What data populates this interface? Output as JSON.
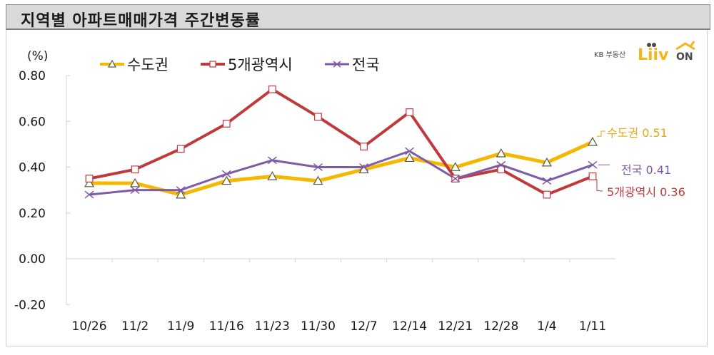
{
  "header": {
    "title": "지역별 아파트매매가격 주간변동률"
  },
  "logo": {
    "prefix": "KB 부동산",
    "brand": "Liiv",
    "suffix": "ON"
  },
  "chart_data": {
    "type": "line",
    "title": "지역별 아파트매매가격 주간변동률",
    "ylabel": "(%)",
    "xlabel": "",
    "ylim": [
      -0.2,
      0.8
    ],
    "yticks": [
      "0.80",
      "0.60",
      "0.40",
      "0.20",
      "0.00",
      "-0.20"
    ],
    "ytick_values": [
      0.8,
      0.6,
      0.4,
      0.2,
      0.0,
      -0.2
    ],
    "negative_tick_color": "#e03030",
    "grid": false,
    "legend_position": "top",
    "categories": [
      "10/26",
      "11/2",
      "11/9",
      "11/16",
      "11/23",
      "11/30",
      "12/7",
      "12/14",
      "12/21",
      "12/28",
      "1/4",
      "1/11"
    ],
    "series": [
      {
        "name": "수도권",
        "color": "#f5b800",
        "marker": "triangle",
        "values": [
          0.33,
          0.33,
          0.28,
          0.34,
          0.36,
          0.34,
          0.39,
          0.44,
          0.4,
          0.46,
          0.42,
          0.51
        ]
      },
      {
        "name": "5개광역시",
        "color": "#c0393b",
        "marker": "square",
        "values": [
          0.35,
          0.39,
          0.48,
          0.59,
          0.74,
          0.62,
          0.49,
          0.64,
          0.35,
          0.39,
          0.28,
          0.36
        ]
      },
      {
        "name": "전국",
        "color": "#7f5aa6",
        "marker": "x",
        "values": [
          0.28,
          0.3,
          0.3,
          0.37,
          0.43,
          0.4,
          0.4,
          0.47,
          0.35,
          0.41,
          0.34,
          0.41
        ]
      }
    ],
    "annotations": [
      {
        "series": "수도권",
        "text": "수도권 0.51",
        "color": "#e6a817"
      },
      {
        "series": "전국",
        "text": "전국 0.41",
        "color": "#7f5aa6"
      },
      {
        "series": "5개광역시",
        "text": "5개광역시 0.36",
        "color": "#c0393b"
      }
    ]
  }
}
